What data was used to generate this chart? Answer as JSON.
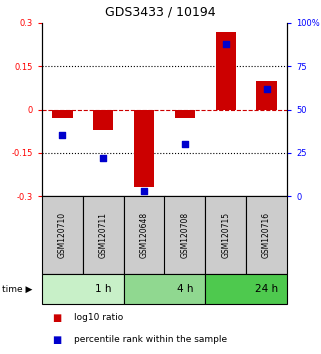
{
  "title": "GDS3433 / 10194",
  "samples": [
    "GSM120710",
    "GSM120711",
    "GSM120648",
    "GSM120708",
    "GSM120715",
    "GSM120716"
  ],
  "log10_ratio": [
    -0.03,
    -0.07,
    -0.27,
    -0.03,
    0.27,
    0.1
  ],
  "percentile_rank": [
    35,
    22,
    3,
    30,
    88,
    62
  ],
  "time_groups": [
    {
      "label": "1 h",
      "start": 0,
      "end": 2,
      "color": "#c8f0c8"
    },
    {
      "label": "4 h",
      "start": 2,
      "end": 4,
      "color": "#90d890"
    },
    {
      "label": "24 h",
      "start": 4,
      "end": 6,
      "color": "#4ec94e"
    }
  ],
  "ylim_left": [
    -0.3,
    0.3
  ],
  "ylim_right": [
    0,
    100
  ],
  "yticks_left": [
    -0.3,
    -0.15,
    0,
    0.15,
    0.3
  ],
  "yticks_right": [
    0,
    25,
    50,
    75,
    100
  ],
  "ytick_labels_left": [
    "-0.3",
    "-0.15",
    "0",
    "0.15",
    "0.3"
  ],
  "ytick_labels_right": [
    "0",
    "25",
    "50",
    "75",
    "100%"
  ],
  "bar_color": "#cc0000",
  "square_color": "#0000cc",
  "zero_line_color": "#cc0000",
  "grid_color": "#000000",
  "sample_box_color": "#cccccc",
  "bar_width": 0.5,
  "square_size": 25,
  "legend_red": "log10 ratio",
  "legend_blue": "percentile rank within the sample"
}
